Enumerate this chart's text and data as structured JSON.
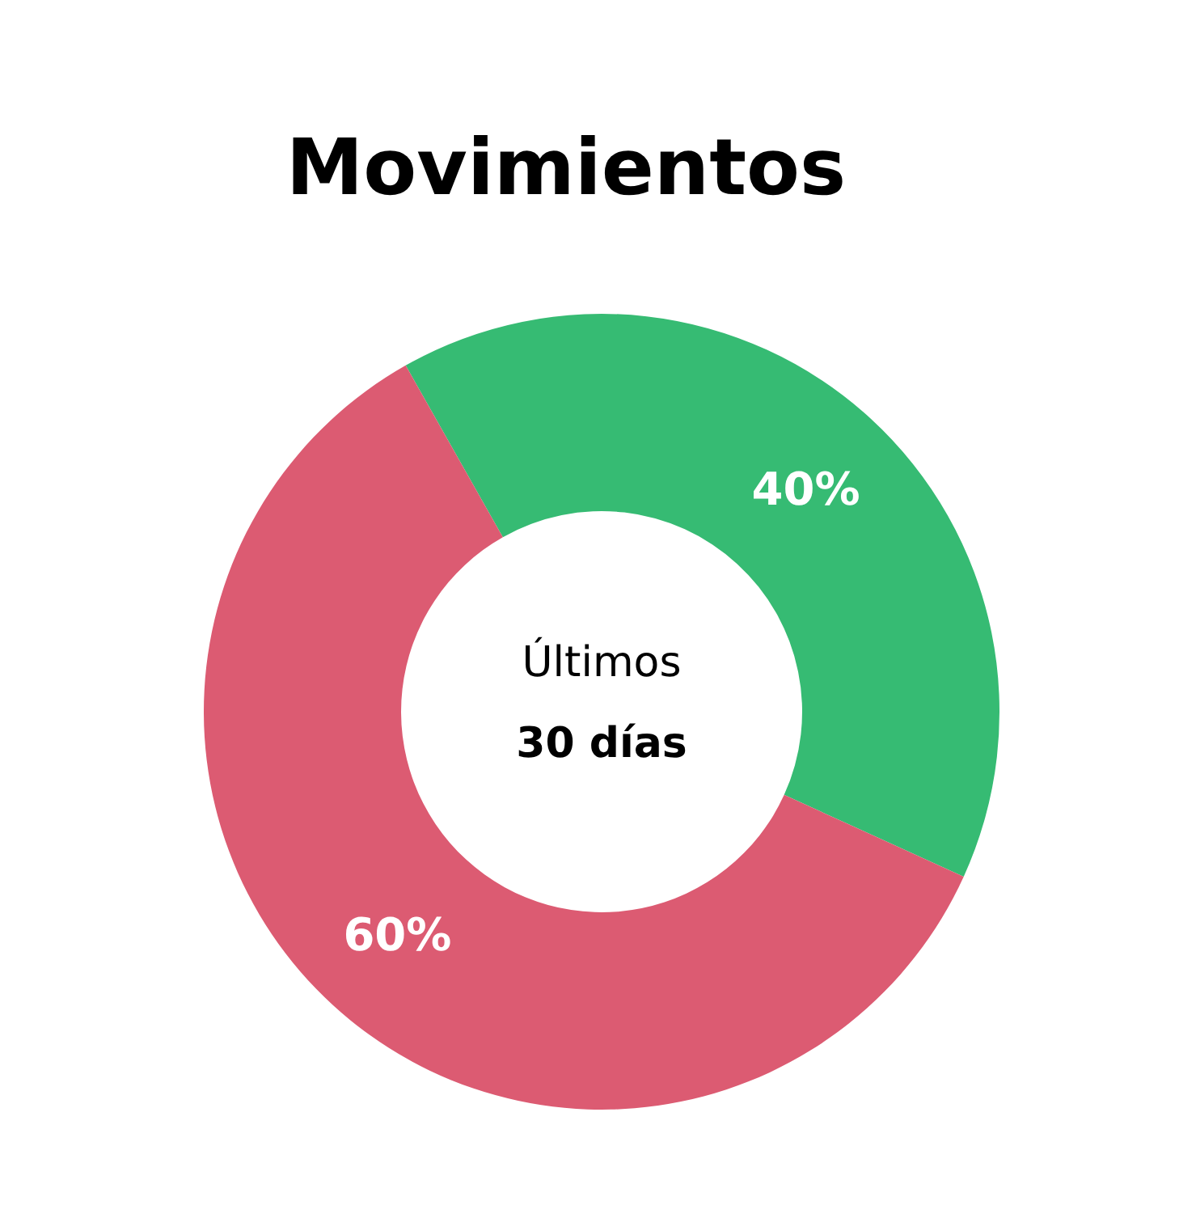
{
  "chart_data": {
    "type": "donut",
    "title": "Movimientos",
    "categories": [
      null,
      null
    ],
    "values": [
      40,
      60
    ],
    "value_labels": [
      "40%",
      "60%"
    ],
    "colors": [
      "#36bb73",
      "#dc5b72"
    ],
    "annotations": [
      "Últimos",
      "30 días"
    ]
  }
}
